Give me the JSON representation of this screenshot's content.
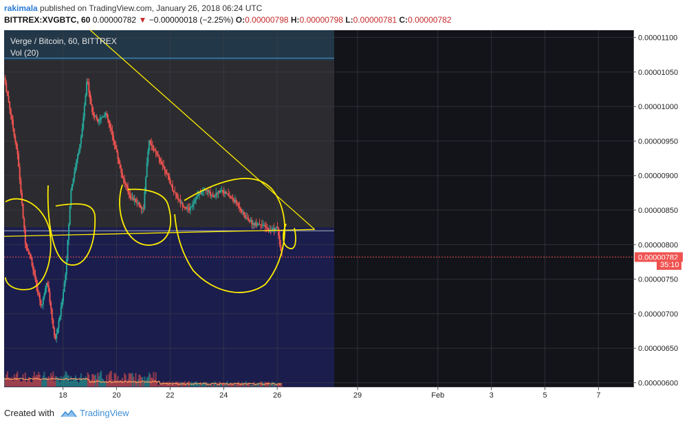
{
  "header": {
    "user": "rakimala",
    "published_text": " published on TradingView.com, January 26, 2018 06:24 UTC",
    "symbol": "BITTREX:XVGBTC, 60",
    "last": "0.00000782",
    "change": "−0.00000018 (−2.25%)",
    "o_label": "O:",
    "o": "0.00000798",
    "h_label": "H:",
    "h": "0.00000798",
    "l_label": "L:",
    "l": "0.00000781",
    "c_label": "C:",
    "c": "0.00000782"
  },
  "legend": {
    "title": "Verge / Bitcoin, 60, BITTREX",
    "volume": "Vol (20)"
  },
  "price_tag": "0.00000782",
  "countdown": "35:10",
  "footer": {
    "created_with": "Created with",
    "brand": "TradingView"
  },
  "colors": {
    "up": "#26a69a",
    "down": "#ef5350",
    "annotation": "#ffee00",
    "tag": "#ef5350",
    "volume_ma": "#ff9e60"
  },
  "chart_data": {
    "type": "candlestick",
    "y_ticks": [
      "0.00000600",
      "0.00000650",
      "0.00000700",
      "0.00000750",
      "0.00000800",
      "0.00000850",
      "0.00000900",
      "0.00000950",
      "0.00001000",
      "0.00001050",
      "0.00001100"
    ],
    "ylim": [
      5.935e-06,
      1.1105e-05
    ],
    "x_ticks": [
      {
        "label": "18",
        "day": 18
      },
      {
        "label": "20",
        "day": 20
      },
      {
        "label": "22",
        "day": 22
      },
      {
        "label": "24",
        "day": 24
      },
      {
        "label": "26",
        "day": 26
      },
      {
        "label": "29",
        "day": 29
      },
      {
        "label": "Feb",
        "day": 32
      },
      {
        "label": "3",
        "day": 34
      },
      {
        "label": "5",
        "day": 36
      },
      {
        "label": "7",
        "day": 38
      }
    ],
    "xlim": [
      15.8,
      39.3
    ],
    "last_price": 7.82e-06,
    "price_path": [
      [
        15.8,
        1041
      ],
      [
        16.0,
        1000
      ],
      [
        16.3,
        930
      ],
      [
        16.6,
        800
      ],
      [
        16.8,
        780
      ],
      [
        17.0,
        740
      ],
      [
        17.2,
        710
      ],
      [
        17.4,
        750
      ],
      [
        17.6,
        690
      ],
      [
        17.7,
        660
      ],
      [
        17.9,
        700
      ],
      [
        18.1,
        760
      ],
      [
        18.3,
        880
      ],
      [
        18.5,
        920
      ],
      [
        18.7,
        960
      ],
      [
        18.9,
        1040
      ],
      [
        19.1,
        990
      ],
      [
        19.3,
        980
      ],
      [
        19.6,
        990
      ],
      [
        19.9,
        950
      ],
      [
        20.2,
        900
      ],
      [
        20.5,
        870
      ],
      [
        20.8,
        860
      ],
      [
        21.0,
        850
      ],
      [
        21.2,
        950
      ],
      [
        21.5,
        930
      ],
      [
        21.8,
        910
      ],
      [
        22.1,
        880
      ],
      [
        22.4,
        860
      ],
      [
        22.7,
        850
      ],
      [
        23.0,
        870
      ],
      [
        23.3,
        880
      ],
      [
        23.6,
        870
      ],
      [
        23.9,
        880
      ],
      [
        24.2,
        870
      ],
      [
        24.5,
        860
      ],
      [
        24.8,
        840
      ],
      [
        25.1,
        830
      ],
      [
        25.4,
        830
      ],
      [
        25.7,
        820
      ],
      [
        26.0,
        825
      ],
      [
        26.1,
        798
      ],
      [
        26.2,
        782
      ]
    ],
    "horizontal_levels": [
      1.07e-05,
      8.2e-06
    ],
    "trendline": {
      "start": [
        18.6,
        1.125e-05
      ],
      "end": [
        27.4,
        8.22e-06
      ]
    },
    "volume_scale_top": 6.25e-06
  }
}
